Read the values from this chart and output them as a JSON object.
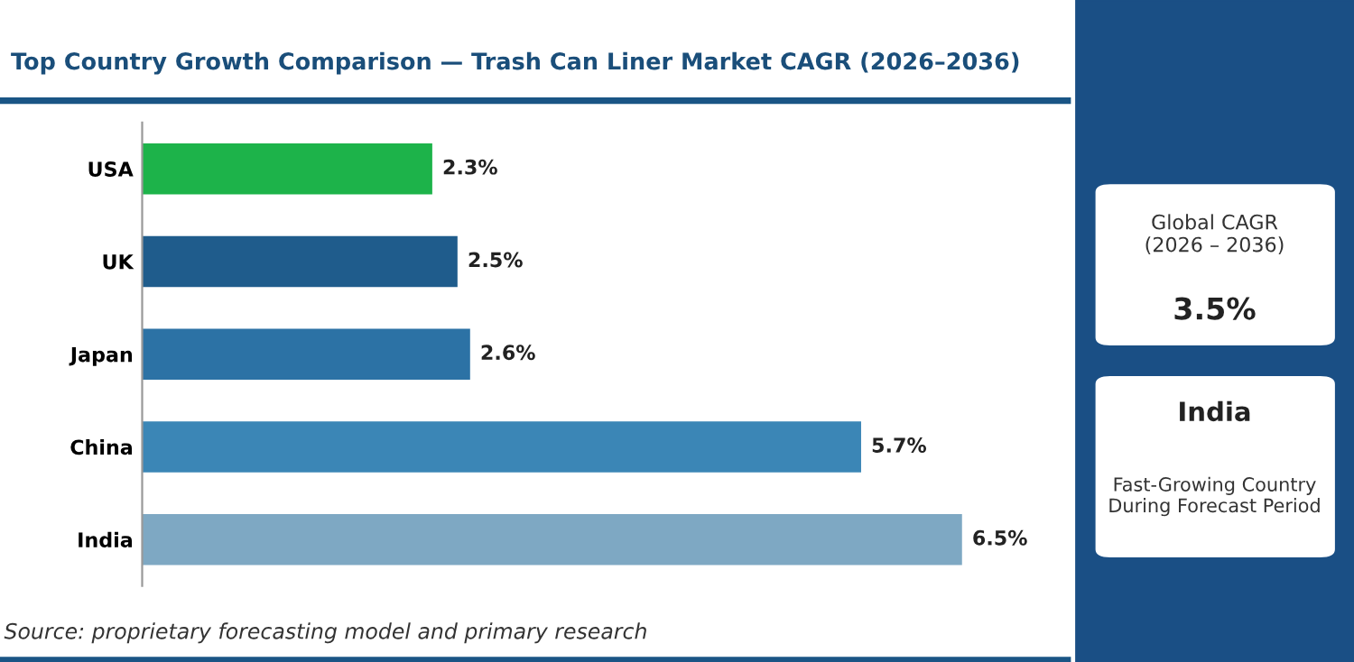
{
  "chart_data": {
    "type": "bar",
    "orientation": "horizontal",
    "title": "Top Country Growth Comparison — Trash Can Liner Market CAGR (2026–2036)",
    "categories": [
      "USA",
      "UK",
      "Japan",
      "China",
      "India"
    ],
    "values": [
      2.3,
      2.5,
      2.6,
      5.7,
      6.5
    ],
    "colors": [
      "#1db34a",
      "#1f5c8c",
      "#2c72a5",
      "#3b86b6",
      "#7ea8c3"
    ],
    "value_labels": [
      "2.3%",
      "2.5%",
      "2.6%",
      "5.7%",
      "6.5%"
    ],
    "grid": false,
    "legend": false,
    "annotations": [
      "Source: proprietary forecasting model and primary research",
      "Global CAGR\n(2026 – 2036)",
      "3.5%",
      "India",
      "Fast-Growing Country\nDuring Forecast Period"
    ]
  }
}
